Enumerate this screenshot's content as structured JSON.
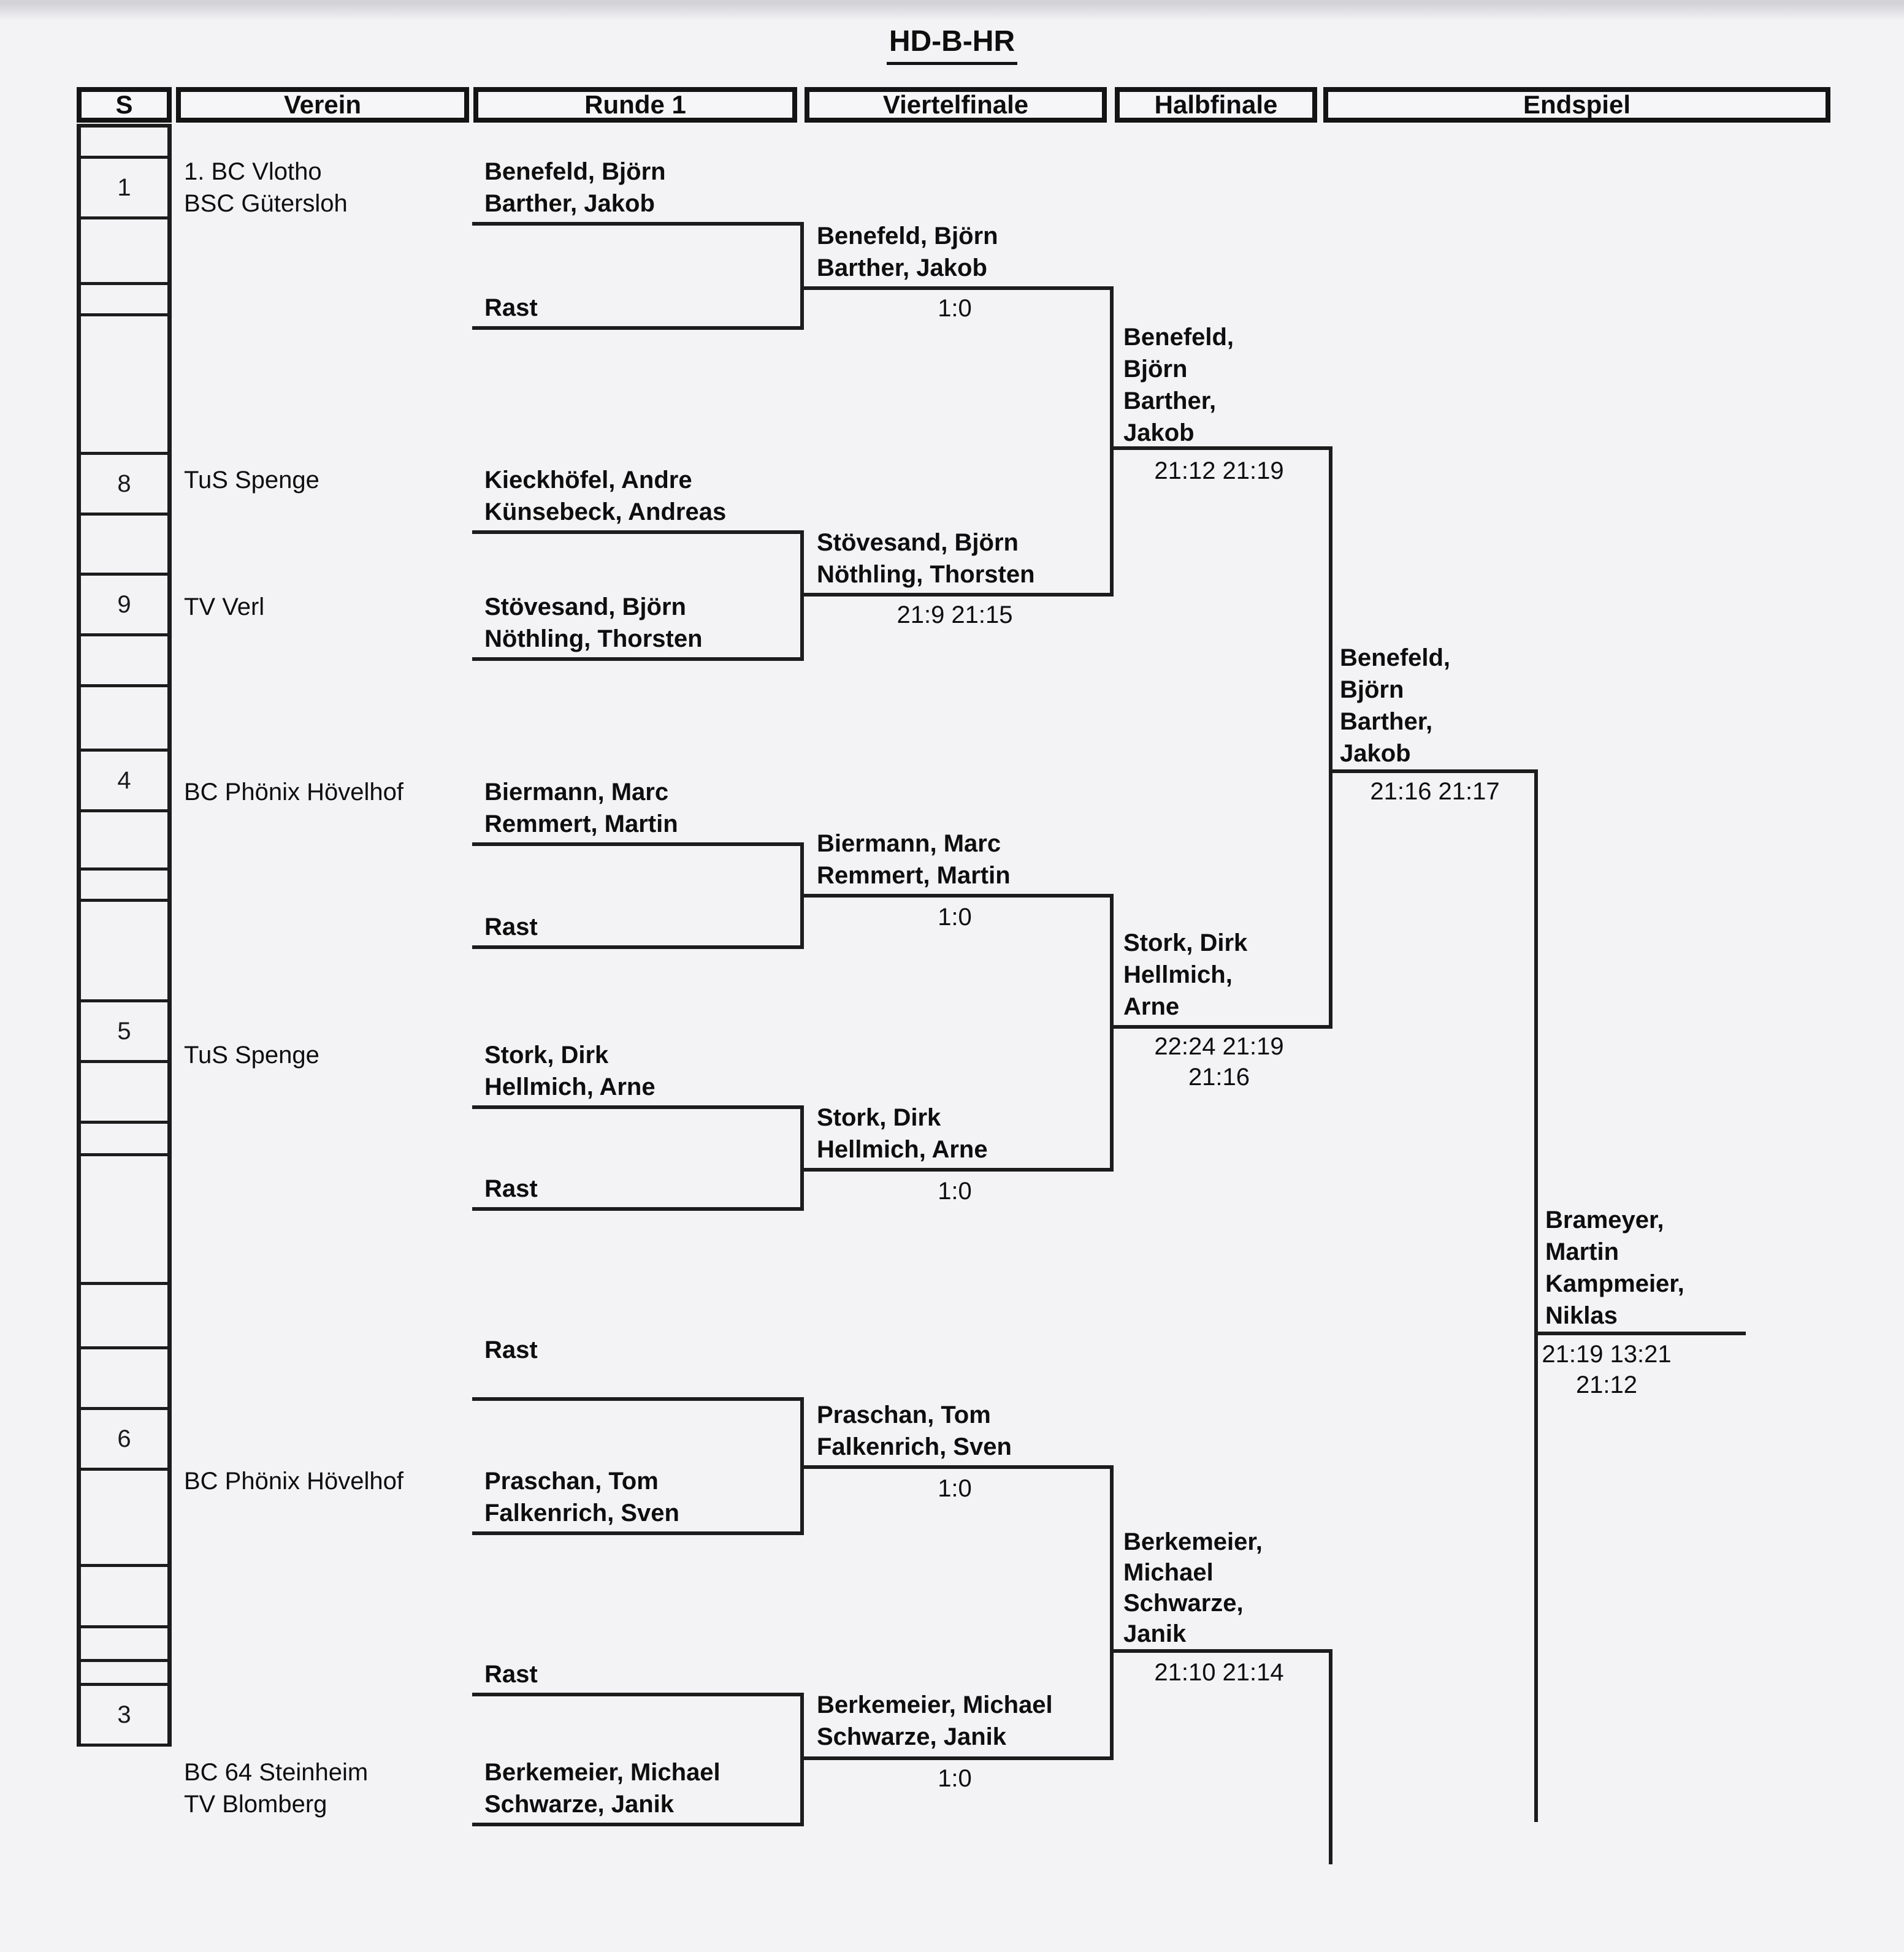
{
  "title": "HD-B-HR",
  "header_columns": [
    "S",
    "Verein",
    "Runde 1",
    "Viertelfinale",
    "Halbfinale",
    "Endspiel"
  ],
  "seed_column": {
    "labels": [
      "",
      "1",
      "",
      "",
      "",
      "8",
      "",
      "9",
      "",
      "",
      "4",
      "",
      "",
      "",
      "5",
      "",
      "",
      "",
      "",
      "",
      "6",
      "",
      "",
      "",
      "",
      "3"
    ]
  },
  "bracket": {
    "texts": {
      "club-1": [
        "1. BC Vlotho",
        "BSC Gütersloh"
      ],
      "team-1": [
        "Benefeld, Björn",
        "Barther, Jakob"
      ],
      "bye-1": [
        "Rast"
      ],
      "qf1-winner": [
        "Benefeld, Björn",
        "Barther, Jakob"
      ],
      "qf1-score": [
        "1:0"
      ],
      "club-8": [
        "TuS Spenge"
      ],
      "team-8": [
        "Kieckhöfel, Andre",
        "Künsebeck, Andreas"
      ],
      "club-9": [
        "TV Verl"
      ],
      "team-9": [
        "Stövesand, Björn",
        "Nöthling, Thorsten"
      ],
      "qf2-winner": [
        "Stövesand, Björn",
        "Nöthling, Thorsten"
      ],
      "qf2-score": [
        "21:9 21:15"
      ],
      "sf1-winner": [
        "Benefeld,",
        "Björn",
        "Barther,",
        "Jakob"
      ],
      "sf1-score": [
        "21:12 21:19"
      ],
      "club-4": [
        "BC Phönix Hövelhof"
      ],
      "team-4": [
        "Biermann, Marc",
        "Remmert, Martin"
      ],
      "bye-2": [
        "Rast"
      ],
      "qf3-winner": [
        "Biermann, Marc",
        "Remmert, Martin"
      ],
      "qf3-score": [
        "1:0"
      ],
      "club-5": [
        "TuS Spenge"
      ],
      "team-5": [
        "Stork, Dirk",
        "Hellmich, Arne"
      ],
      "bye-3": [
        "Rast"
      ],
      "qf4-winner": [
        "Stork, Dirk",
        "Hellmich, Arne"
      ],
      "qf4-score": [
        "1:0"
      ],
      "sf2-winner": [
        "Stork, Dirk",
        "Hellmich,",
        "Arne"
      ],
      "sf2-score": [
        "22:24 21:19",
        "21:16"
      ],
      "final-top": [
        "Benefeld,",
        "Björn",
        "Barther,",
        "Jakob"
      ],
      "final-top-score": [
        "21:16 21:17"
      ],
      "champion": [
        "Brameyer,",
        "Martin",
        "Kampmeier,",
        "Niklas"
      ],
      "champion-score": [
        "21:19 13:21",
        "21:12"
      ],
      "bye-4": [
        "Rast"
      ],
      "qf5-winner": [
        "Praschan, Tom",
        "Falkenrich, Sven"
      ],
      "qf5-score": [
        "1:0"
      ],
      "club-6": [
        "BC Phönix Hövelhof"
      ],
      "team-6": [
        "Praschan, Tom",
        "Falkenrich, Sven"
      ],
      "sf3-winner": [
        "Berkemeier,",
        "Michael",
        "Schwarze,",
        "Janik"
      ],
      "sf3-score": [
        "21:10 21:14"
      ],
      "bye-5": [
        "Rast"
      ],
      "qf6-winner": [
        "Berkemeier, Michael",
        "Schwarze, Janik"
      ],
      "qf6-score": [
        "1:0"
      ],
      "club-3": [
        "BC 64 Steinheim",
        "TV Blomberg"
      ],
      "team-3": [
        "Berkemeier, Michael",
        "Schwarze, Janik"
      ]
    }
  }
}
